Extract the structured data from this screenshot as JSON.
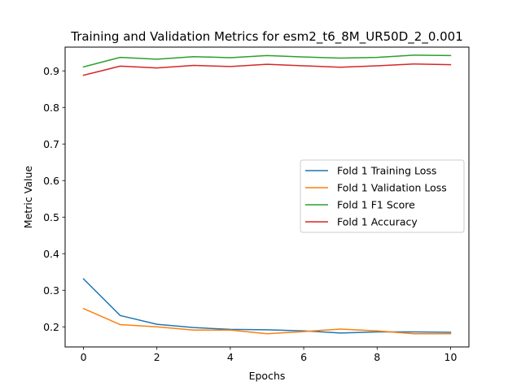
{
  "chart_data": {
    "type": "line",
    "title": "Training and Validation Metrics for esm2_t6_8M_UR50D_2_0.001",
    "xlabel": "Epochs",
    "ylabel": "Metric Value",
    "x": [
      0,
      1,
      2,
      3,
      4,
      5,
      6,
      7,
      8,
      9,
      10
    ],
    "xlim": [
      -0.5,
      10.5
    ],
    "ylim": [
      0.145,
      0.965
    ],
    "xticks": [
      0,
      2,
      4,
      6,
      8,
      10
    ],
    "yticks": [
      0.2,
      0.3,
      0.4,
      0.5,
      0.6,
      0.7,
      0.8,
      0.9
    ],
    "grid": false,
    "legend_position": "center-right",
    "series": [
      {
        "name": "Fold 1 Training Loss",
        "color": "#1f77b4",
        "values": [
          0.331,
          0.231,
          0.207,
          0.198,
          0.193,
          0.192,
          0.189,
          0.183,
          0.186,
          0.186,
          0.185
        ]
      },
      {
        "name": "Fold 1 Validation Loss",
        "color": "#ff7f0e",
        "values": [
          0.25,
          0.206,
          0.2,
          0.191,
          0.191,
          0.181,
          0.187,
          0.194,
          0.189,
          0.181,
          0.181
        ]
      },
      {
        "name": "Fold 1 F1 Score",
        "color": "#2ca02c",
        "values": [
          0.911,
          0.937,
          0.932,
          0.939,
          0.936,
          0.942,
          0.938,
          0.935,
          0.937,
          0.943,
          0.942
        ]
      },
      {
        "name": "Fold 1 Accuracy",
        "color": "#d62728",
        "values": [
          0.888,
          0.913,
          0.908,
          0.915,
          0.912,
          0.918,
          0.914,
          0.91,
          0.914,
          0.919,
          0.917
        ]
      }
    ]
  }
}
